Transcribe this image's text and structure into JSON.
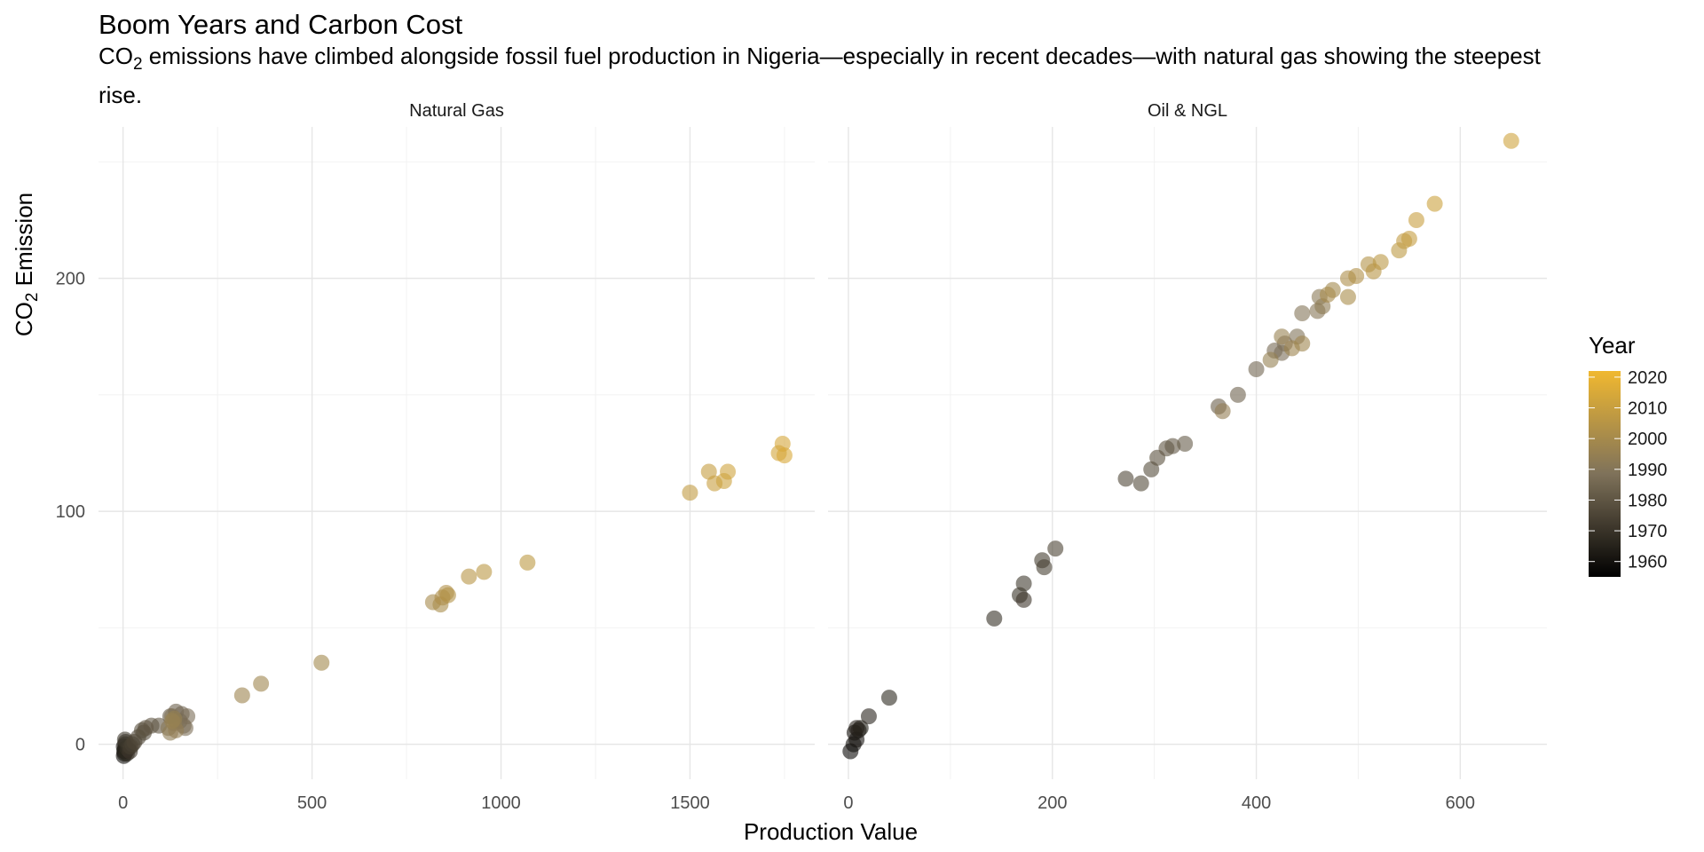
{
  "title": "Boom Years and Carbon Cost",
  "subtitle": {
    "pre": "CO",
    "sub": "2",
    "text": " emissions have climbed alongside fossil fuel production in Nigeria—especially in recent decades—with natural gas showing the steepest rise."
  },
  "axes": {
    "x_title": "Production Value",
    "y_title_pre": "CO",
    "y_title_sub": "2",
    "y_title_post": " Emission"
  },
  "legend": {
    "title": "Year",
    "labels": [
      "2020",
      "2010",
      "2000",
      "1990",
      "1980",
      "1970",
      "1960"
    ],
    "color_low": "#000000",
    "color_mid": "#7f725a",
    "color_high": "#f0b830"
  },
  "chart_data": {
    "type": "scatter",
    "color_encoding": "year",
    "y_range": [
      -15,
      265
    ],
    "y_ticks": [
      0,
      100,
      200
    ],
    "panels": [
      {
        "name": "Natural Gas",
        "x_range": [
          -65,
          1830
        ],
        "x_ticks": [
          0,
          500,
          1000,
          1500
        ],
        "points": [
          {
            "x": 2,
            "y": -5,
            "year": 1960
          },
          {
            "x": 3,
            "y": -3,
            "year": 1961
          },
          {
            "x": 2,
            "y": -1,
            "year": 1962
          },
          {
            "x": 4,
            "y": -4,
            "year": 1963
          },
          {
            "x": 5,
            "y": -2,
            "year": 1964
          },
          {
            "x": 6,
            "y": 0,
            "year": 1965
          },
          {
            "x": 8,
            "y": -3,
            "year": 1966
          },
          {
            "x": 10,
            "y": -4,
            "year": 1967
          },
          {
            "x": 7,
            "y": 1,
            "year": 1968
          },
          {
            "x": 12,
            "y": -2,
            "year": 1969
          },
          {
            "x": 15,
            "y": -1,
            "year": 1970
          },
          {
            "x": 18,
            "y": -3,
            "year": 1971
          },
          {
            "x": 5,
            "y": 2,
            "year": 1972
          },
          {
            "x": 20,
            "y": -1,
            "year": 1973
          },
          {
            "x": 25,
            "y": 0,
            "year": 1974
          },
          {
            "x": 30,
            "y": 1,
            "year": 1975
          },
          {
            "x": 40,
            "y": 3,
            "year": 1976
          },
          {
            "x": 55,
            "y": 5,
            "year": 1977
          },
          {
            "x": 50,
            "y": 6,
            "year": 1978
          },
          {
            "x": 60,
            "y": 7,
            "year": 1979
          },
          {
            "x": 75,
            "y": 8,
            "year": 1980
          },
          {
            "x": 95,
            "y": 8,
            "year": 1981
          },
          {
            "x": 125,
            "y": 12,
            "year": 1982
          },
          {
            "x": 140,
            "y": 14,
            "year": 1983
          },
          {
            "x": 150,
            "y": 10,
            "year": 1984
          },
          {
            "x": 155,
            "y": 13,
            "year": 1985
          },
          {
            "x": 160,
            "y": 8,
            "year": 1986
          },
          {
            "x": 170,
            "y": 12,
            "year": 1987
          },
          {
            "x": 165,
            "y": 7,
            "year": 1988
          },
          {
            "x": 140,
            "y": 10,
            "year": 1989
          },
          {
            "x": 130,
            "y": 12,
            "year": 1990
          },
          {
            "x": 120,
            "y": 7,
            "year": 1991
          },
          {
            "x": 135,
            "y": 9,
            "year": 1992
          },
          {
            "x": 125,
            "y": 5,
            "year": 1993
          },
          {
            "x": 140,
            "y": 6,
            "year": 1994
          },
          {
            "x": 135,
            "y": 11,
            "year": 1995
          },
          {
            "x": 130,
            "y": 10,
            "year": 1996
          },
          {
            "x": 315,
            "y": 21,
            "year": 1997
          },
          {
            "x": 365,
            "y": 26,
            "year": 1998
          },
          {
            "x": 525,
            "y": 35,
            "year": 1999
          },
          {
            "x": 820,
            "y": 61,
            "year": 2000
          },
          {
            "x": 840,
            "y": 60,
            "year": 2001
          },
          {
            "x": 845,
            "y": 63,
            "year": 2002
          },
          {
            "x": 855,
            "y": 65,
            "year": 2003
          },
          {
            "x": 860,
            "y": 64,
            "year": 2004
          },
          {
            "x": 915,
            "y": 72,
            "year": 2005
          },
          {
            "x": 955,
            "y": 74,
            "year": 2006
          },
          {
            "x": 1070,
            "y": 78,
            "year": 2007
          },
          {
            "x": 1500,
            "y": 108,
            "year": 2008
          },
          {
            "x": 1550,
            "y": 117,
            "year": 2009
          },
          {
            "x": 1565,
            "y": 112,
            "year": 2010
          },
          {
            "x": 1590,
            "y": 113,
            "year": 2011
          },
          {
            "x": 1600,
            "y": 117,
            "year": 2012
          },
          {
            "x": 1735,
            "y": 125,
            "year": 2013
          },
          {
            "x": 1745,
            "y": 129,
            "year": 2014
          },
          {
            "x": 1750,
            "y": 124,
            "year": 2015
          }
        ]
      },
      {
        "name": "Oil & NGL",
        "x_range": [
          -20,
          685
        ],
        "x_ticks": [
          0,
          200,
          400,
          600
        ],
        "points": [
          {
            "x": 2,
            "y": -3,
            "year": 1958
          },
          {
            "x": 5,
            "y": 0,
            "year": 1960
          },
          {
            "x": 8,
            "y": 2,
            "year": 1961
          },
          {
            "x": 6,
            "y": 5,
            "year": 1962
          },
          {
            "x": 10,
            "y": 6,
            "year": 1963
          },
          {
            "x": 12,
            "y": 7,
            "year": 1964
          },
          {
            "x": 8,
            "y": 7,
            "year": 1965
          },
          {
            "x": 20,
            "y": 12,
            "year": 1966
          },
          {
            "x": 40,
            "y": 20,
            "year": 1967
          },
          {
            "x": 143,
            "y": 54,
            "year": 1969
          },
          {
            "x": 168,
            "y": 64,
            "year": 1970
          },
          {
            "x": 172,
            "y": 62,
            "year": 1971
          },
          {
            "x": 172,
            "y": 69,
            "year": 1972
          },
          {
            "x": 190,
            "y": 79,
            "year": 1973
          },
          {
            "x": 192,
            "y": 76,
            "year": 1974
          },
          {
            "x": 203,
            "y": 84,
            "year": 1975
          },
          {
            "x": 272,
            "y": 114,
            "year": 1976
          },
          {
            "x": 287,
            "y": 112,
            "year": 1977
          },
          {
            "x": 297,
            "y": 118,
            "year": 1978
          },
          {
            "x": 303,
            "y": 123,
            "year": 1979
          },
          {
            "x": 312,
            "y": 127,
            "year": 1980
          },
          {
            "x": 318,
            "y": 128,
            "year": 1981
          },
          {
            "x": 330,
            "y": 129,
            "year": 1982
          },
          {
            "x": 363,
            "y": 145,
            "year": 1983
          },
          {
            "x": 382,
            "y": 150,
            "year": 1984
          },
          {
            "x": 400,
            "y": 161,
            "year": 1985
          },
          {
            "x": 418,
            "y": 169,
            "year": 1986
          },
          {
            "x": 425,
            "y": 168,
            "year": 1987
          },
          {
            "x": 428,
            "y": 172,
            "year": 1988
          },
          {
            "x": 440,
            "y": 175,
            "year": 1989
          },
          {
            "x": 445,
            "y": 185,
            "year": 1990
          },
          {
            "x": 460,
            "y": 186,
            "year": 1991
          },
          {
            "x": 462,
            "y": 192,
            "year": 1992
          },
          {
            "x": 465,
            "y": 188,
            "year": 1993
          },
          {
            "x": 367,
            "y": 143,
            "year": 1994
          },
          {
            "x": 414,
            "y": 165,
            "year": 1995
          },
          {
            "x": 425,
            "y": 175,
            "year": 1996
          },
          {
            "x": 435,
            "y": 170,
            "year": 1997
          },
          {
            "x": 445,
            "y": 172,
            "year": 1998
          },
          {
            "x": 475,
            "y": 195,
            "year": 1999
          },
          {
            "x": 470,
            "y": 193,
            "year": 2000
          },
          {
            "x": 490,
            "y": 192,
            "year": 2001
          },
          {
            "x": 490,
            "y": 200,
            "year": 2002
          },
          {
            "x": 498,
            "y": 201,
            "year": 2003
          },
          {
            "x": 510,
            "y": 206,
            "year": 2004
          },
          {
            "x": 515,
            "y": 203,
            "year": 2005
          },
          {
            "x": 522,
            "y": 207,
            "year": 2006
          },
          {
            "x": 540,
            "y": 212,
            "year": 2007
          },
          {
            "x": 545,
            "y": 216,
            "year": 2008
          },
          {
            "x": 550,
            "y": 217,
            "year": 2009
          },
          {
            "x": 557,
            "y": 225,
            "year": 2010
          },
          {
            "x": 575,
            "y": 232,
            "year": 2011
          },
          {
            "x": 650,
            "y": 259,
            "year": 2012
          }
        ]
      }
    ]
  }
}
